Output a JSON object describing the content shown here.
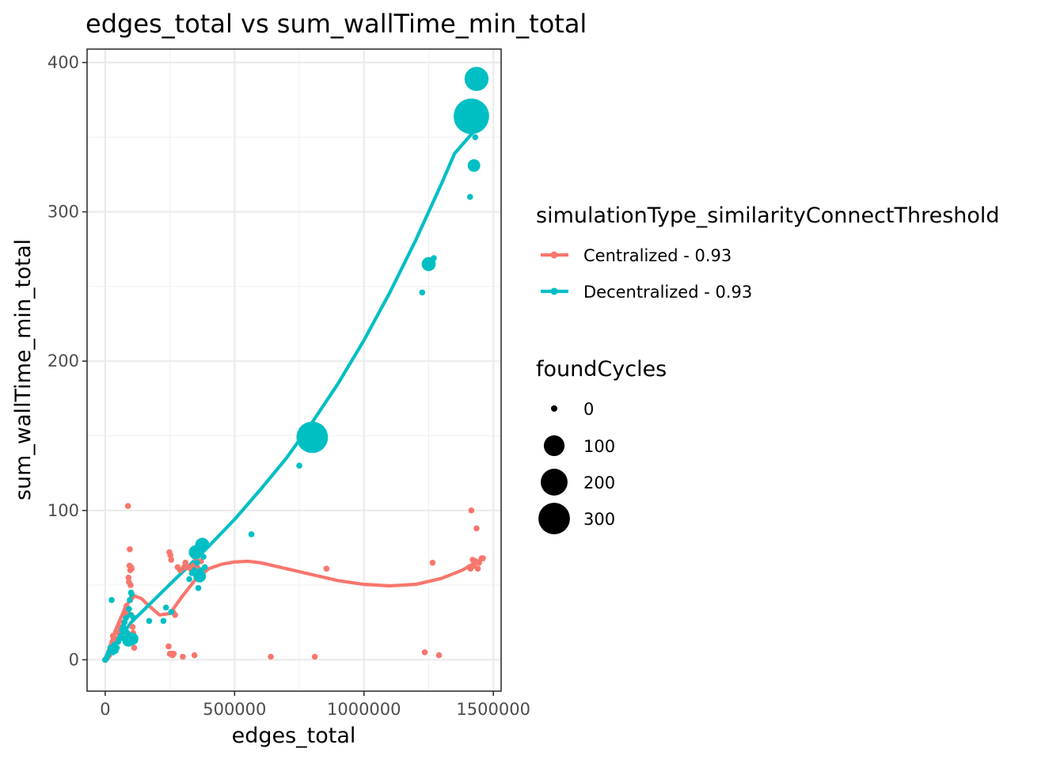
{
  "chart_data": {
    "type": "scatter",
    "title": "edges_total  vs  sum_wallTime_min_total",
    "xlabel": "edges_total",
    "ylabel": "sum_wallTime_min_total",
    "xlim": [
      -70000,
      1530000
    ],
    "ylim": [
      -21,
      409
    ],
    "x_ticks": [
      0,
      500000,
      1000000,
      1500000
    ],
    "x_tick_labels": [
      "0",
      "500000",
      "1000000",
      "1500000"
    ],
    "y_ticks": [
      0,
      100,
      200,
      300,
      400
    ],
    "y_tick_labels": [
      "0",
      "100",
      "200",
      "300",
      "400"
    ],
    "grid": true,
    "legend": {
      "placement": "right",
      "color_title": "simulationType_similarityConnectThreshold",
      "size_title": "foundCycles",
      "size_breaks": [
        {
          "label": "0",
          "value": 0
        },
        {
          "label": "100",
          "value": 100
        },
        {
          "label": "200",
          "value": 200
        },
        {
          "label": "300",
          "value": 300
        }
      ]
    },
    "series": [
      {
        "name": "Centralized - 0.93",
        "color": "#F8766D",
        "points": [
          [
            0,
            0,
            0
          ],
          [
            5000,
            1,
            0
          ],
          [
            10000,
            2,
            0
          ],
          [
            15000,
            3,
            0
          ],
          [
            20000,
            5,
            0
          ],
          [
            25000,
            8,
            0
          ],
          [
            28000,
            12,
            0
          ],
          [
            30000,
            16,
            0
          ],
          [
            35000,
            10,
            0
          ],
          [
            40000,
            7,
            0
          ],
          [
            45000,
            14,
            0
          ],
          [
            50000,
            18,
            0
          ],
          [
            55000,
            22,
            0
          ],
          [
            60000,
            20,
            0
          ],
          [
            65000,
            15,
            0
          ],
          [
            70000,
            25,
            0
          ],
          [
            75000,
            30,
            0
          ],
          [
            80000,
            28,
            0
          ],
          [
            82000,
            36,
            0
          ],
          [
            85000,
            32,
            0
          ],
          [
            88000,
            103,
            0
          ],
          [
            90000,
            55,
            0
          ],
          [
            92000,
            52,
            0
          ],
          [
            94000,
            63,
            0
          ],
          [
            95000,
            74,
            0
          ],
          [
            97000,
            60,
            0
          ],
          [
            98000,
            50,
            0
          ],
          [
            100000,
            62,
            0
          ],
          [
            102000,
            61,
            0
          ],
          [
            104000,
            42,
            0
          ],
          [
            106000,
            22,
            0
          ],
          [
            108000,
            18,
            0
          ],
          [
            110000,
            13,
            0
          ],
          [
            112000,
            8,
            0
          ],
          [
            100000,
            30,
            0
          ],
          [
            96000,
            40,
            0
          ],
          [
            245000,
            9,
            0
          ],
          [
            248000,
            72,
            0
          ],
          [
            250000,
            4,
            0
          ],
          [
            252000,
            70,
            0
          ],
          [
            255000,
            67,
            0
          ],
          [
            258000,
            4,
            0
          ],
          [
            260000,
            3,
            0
          ],
          [
            262000,
            32,
            0
          ],
          [
            265000,
            4,
            0
          ],
          [
            270000,
            30,
            0
          ],
          [
            280000,
            62,
            0
          ],
          [
            290000,
            60,
            0
          ],
          [
            300000,
            2,
            0
          ],
          [
            305000,
            62,
            0
          ],
          [
            310000,
            65,
            0
          ],
          [
            320000,
            62,
            0
          ],
          [
            330000,
            61,
            0
          ],
          [
            340000,
            63,
            0
          ],
          [
            345000,
            3,
            0
          ],
          [
            350000,
            68,
            0
          ],
          [
            355000,
            62,
            0
          ],
          [
            360000,
            60,
            0
          ],
          [
            365000,
            58,
            0
          ],
          [
            370000,
            66,
            0
          ],
          [
            640000,
            2,
            0
          ],
          [
            810000,
            2,
            0
          ],
          [
            855000,
            61,
            0
          ],
          [
            1235000,
            5,
            0
          ],
          [
            1265000,
            65,
            0
          ],
          [
            1290000,
            3,
            0
          ],
          [
            1408000,
            62,
            0
          ],
          [
            1412000,
            61,
            0
          ],
          [
            1415000,
            100,
            0
          ],
          [
            1420000,
            67,
            0
          ],
          [
            1425000,
            63,
            0
          ],
          [
            1430000,
            66,
            0
          ],
          [
            1435000,
            88,
            0
          ],
          [
            1440000,
            61,
            0
          ],
          [
            1445000,
            65,
            0
          ],
          [
            1455000,
            68,
            0
          ],
          [
            1460000,
            68,
            0
          ]
        ],
        "smooth": [
          [
            0,
            0
          ],
          [
            40000,
            20
          ],
          [
            80000,
            36
          ],
          [
            110000,
            43
          ],
          [
            140000,
            41
          ],
          [
            170000,
            36
          ],
          [
            210000,
            30
          ],
          [
            250000,
            31
          ],
          [
            300000,
            43
          ],
          [
            350000,
            54
          ],
          [
            400000,
            61
          ],
          [
            450000,
            64
          ],
          [
            500000,
            65.5
          ],
          [
            550000,
            66
          ],
          [
            600000,
            65
          ],
          [
            650000,
            63
          ],
          [
            700000,
            61
          ],
          [
            800000,
            57
          ],
          [
            900000,
            53
          ],
          [
            1000000,
            50.5
          ],
          [
            1100000,
            49.5
          ],
          [
            1200000,
            50.5
          ],
          [
            1300000,
            54.5
          ],
          [
            1380000,
            60
          ],
          [
            1460000,
            68
          ]
        ]
      },
      {
        "name": "Decentralized - 0.93",
        "color": "#00BFC4",
        "points": [
          [
            0,
            0,
            0
          ],
          [
            5000,
            1,
            0
          ],
          [
            10000,
            3,
            0
          ],
          [
            15000,
            5,
            0
          ],
          [
            20000,
            8,
            0
          ],
          [
            25000,
            40,
            0
          ],
          [
            30000,
            5,
            0
          ],
          [
            35000,
            10,
            0
          ],
          [
            40000,
            6,
            0
          ],
          [
            45000,
            8,
            0
          ],
          [
            50000,
            12,
            0
          ],
          [
            55000,
            14,
            0
          ],
          [
            60000,
            16,
            0
          ],
          [
            65000,
            20,
            0
          ],
          [
            70000,
            22,
            0
          ],
          [
            75000,
            25,
            0
          ],
          [
            80000,
            28,
            0
          ],
          [
            85000,
            18,
            0
          ],
          [
            90000,
            13,
            20
          ],
          [
            92000,
            34,
            0
          ],
          [
            95000,
            40,
            0
          ],
          [
            98000,
            30,
            0
          ],
          [
            100000,
            45,
            0
          ],
          [
            102000,
            44,
            0
          ],
          [
            104000,
            14,
            20
          ],
          [
            108000,
            12,
            0
          ],
          [
            110000,
            28,
            0
          ],
          [
            170000,
            26,
            0
          ],
          [
            225000,
            26,
            0
          ],
          [
            235000,
            35,
            0
          ],
          [
            255000,
            32,
            0
          ],
          [
            325000,
            54,
            0
          ],
          [
            335000,
            58,
            0
          ],
          [
            345000,
            60,
            0
          ],
          [
            350000,
            72,
            30
          ],
          [
            355000,
            65,
            0
          ],
          [
            360000,
            48,
            0
          ],
          [
            365000,
            56,
            20
          ],
          [
            370000,
            60,
            0
          ],
          [
            375000,
            77,
            30
          ],
          [
            380000,
            69,
            0
          ],
          [
            385000,
            62,
            0
          ],
          [
            565000,
            84,
            0
          ],
          [
            750000,
            130,
            0
          ],
          [
            800000,
            149,
            300
          ],
          [
            1225000,
            246,
            0
          ],
          [
            1250000,
            265,
            30
          ],
          [
            1270000,
            269,
            0
          ],
          [
            1410000,
            310,
            0
          ],
          [
            1415000,
            364,
            400
          ],
          [
            1425000,
            331,
            20
          ],
          [
            1430000,
            350,
            0
          ],
          [
            1435000,
            389,
            150
          ],
          [
            1450000,
            360,
            0
          ]
        ],
        "smooth": [
          [
            0,
            0
          ],
          [
            100000,
            25
          ],
          [
            200000,
            42
          ],
          [
            300000,
            59
          ],
          [
            400000,
            76
          ],
          [
            500000,
            94
          ],
          [
            600000,
            114
          ],
          [
            700000,
            135
          ],
          [
            800000,
            159
          ],
          [
            900000,
            185
          ],
          [
            1000000,
            214
          ],
          [
            1100000,
            246
          ],
          [
            1200000,
            281
          ],
          [
            1300000,
            319
          ],
          [
            1350000,
            339
          ],
          [
            1420000,
            353
          ]
        ]
      }
    ]
  }
}
